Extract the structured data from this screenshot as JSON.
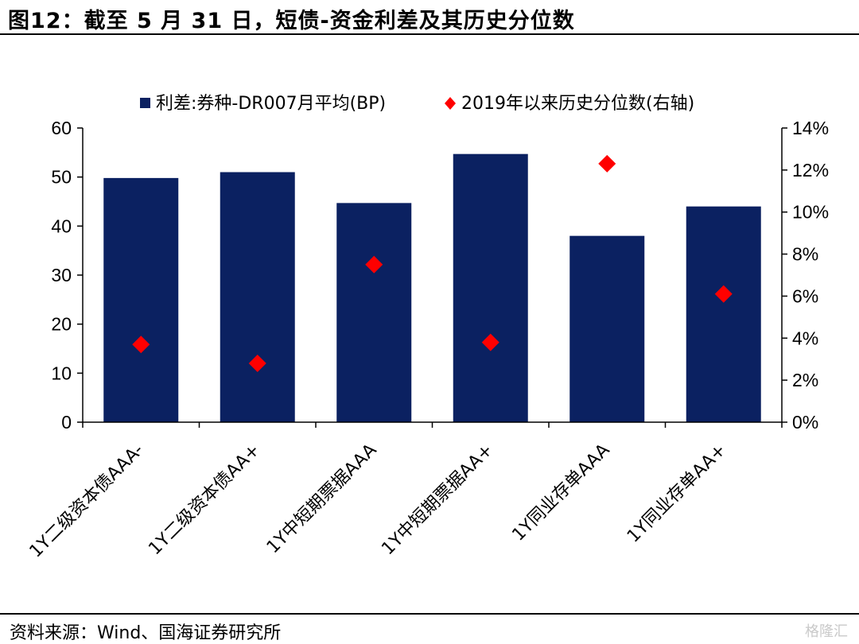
{
  "figure": {
    "title": "图12：截至 5 月 31 日，短债-资金利差及其历史分位数",
    "source": "资料来源：Wind、国海证券研究所",
    "watermark": "格隆汇"
  },
  "colors": {
    "bar": "#0b2161",
    "marker": "#ff0000",
    "axis": "#000000"
  },
  "chart_data": {
    "type": "bar",
    "categories": [
      "1Y二级资本债AAA-",
      "1Y二级资本债AA+",
      "1Y中短期票据AAA",
      "1Y中短期票据AA+",
      "1Y同业存单AAA",
      "1Y同业存单AA+"
    ],
    "series": [
      {
        "name": "利差:券种-DR007月平均(BP)",
        "type": "bar",
        "axis": "left",
        "values": [
          49.8,
          51.0,
          44.7,
          54.7,
          38.0,
          44.0
        ]
      },
      {
        "name": "2019年以来历史分位数(右轴)",
        "type": "scatter",
        "marker": "diamond",
        "axis": "right",
        "values": [
          0.037,
          0.028,
          0.075,
          0.038,
          0.123,
          0.061
        ]
      }
    ],
    "left_axis": {
      "ylim": [
        0,
        60
      ],
      "ticks": [
        0,
        10,
        20,
        30,
        40,
        50,
        60
      ],
      "labels": [
        "0",
        "10",
        "20",
        "30",
        "40",
        "50",
        "60"
      ]
    },
    "right_axis": {
      "ylim": [
        0,
        0.14
      ],
      "ticks": [
        0,
        0.02,
        0.04,
        0.06,
        0.08,
        0.1,
        0.12,
        0.14
      ],
      "labels": [
        "0%",
        "2%",
        "4%",
        "6%",
        "8%",
        "10%",
        "12%",
        "14%"
      ]
    },
    "grid": false,
    "legend_position": "top-center"
  }
}
